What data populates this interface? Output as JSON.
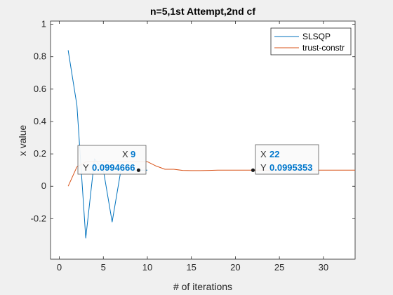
{
  "chart_data": {
    "type": "line",
    "title": "n=5,1st Attempt,2nd cf",
    "xlabel": "# of iterations",
    "ylabel": "x value",
    "xlim": [
      -1,
      33.6
    ],
    "ylim": [
      -0.45,
      1.02
    ],
    "xticks": [
      0,
      5,
      10,
      15,
      20,
      25,
      30
    ],
    "yticks": [
      -0.2,
      0,
      0.2,
      0.4,
      0.6,
      0.8,
      1
    ],
    "ytick_labels": [
      "-0.2",
      "0",
      "0.2",
      "0.4",
      "0.6",
      "0.8",
      "1"
    ],
    "grid": false,
    "legend_position": "top-right",
    "series": [
      {
        "name": "SLSQP",
        "color": "#0072bd",
        "x": [
          1,
          2,
          3,
          4,
          5,
          6,
          7,
          8,
          9,
          10
        ],
        "y": [
          0.84,
          0.5,
          -0.32,
          0.17,
          0.1,
          -0.22,
          0.1,
          0.1,
          0.0994666,
          0.1
        ]
      },
      {
        "name": "trust-constr",
        "color": "#d95319",
        "x": [
          1,
          2,
          3,
          4,
          5,
          6,
          7,
          8,
          9,
          10,
          11,
          12,
          13,
          14,
          15,
          16,
          17,
          18,
          19,
          20,
          21,
          22,
          23,
          24,
          25,
          26,
          27,
          28,
          29,
          30,
          31,
          32,
          33,
          33.6
        ],
        "y": [
          0.0,
          0.12,
          0.15,
          0.155,
          0.153,
          0.152,
          0.152,
          0.152,
          0.152,
          0.152,
          0.125,
          0.105,
          0.105,
          0.098,
          0.097,
          0.097,
          0.098,
          0.1,
          0.1,
          0.1,
          0.1,
          0.0995353,
          0.1,
          0.1,
          0.1,
          0.1,
          0.1,
          0.1,
          0.1,
          0.1,
          0.1,
          0.1,
          0.1,
          0.1
        ]
      }
    ],
    "datatips": [
      {
        "x_key": "X",
        "x_value": "9",
        "y_key": "Y",
        "y_value": "0.0994666",
        "x": 9,
        "y": 0.0994666
      },
      {
        "x_key": "X",
        "x_value": "22",
        "y_key": "Y",
        "y_value": "0.0995353",
        "x": 22,
        "y": 0.0995353
      }
    ]
  }
}
